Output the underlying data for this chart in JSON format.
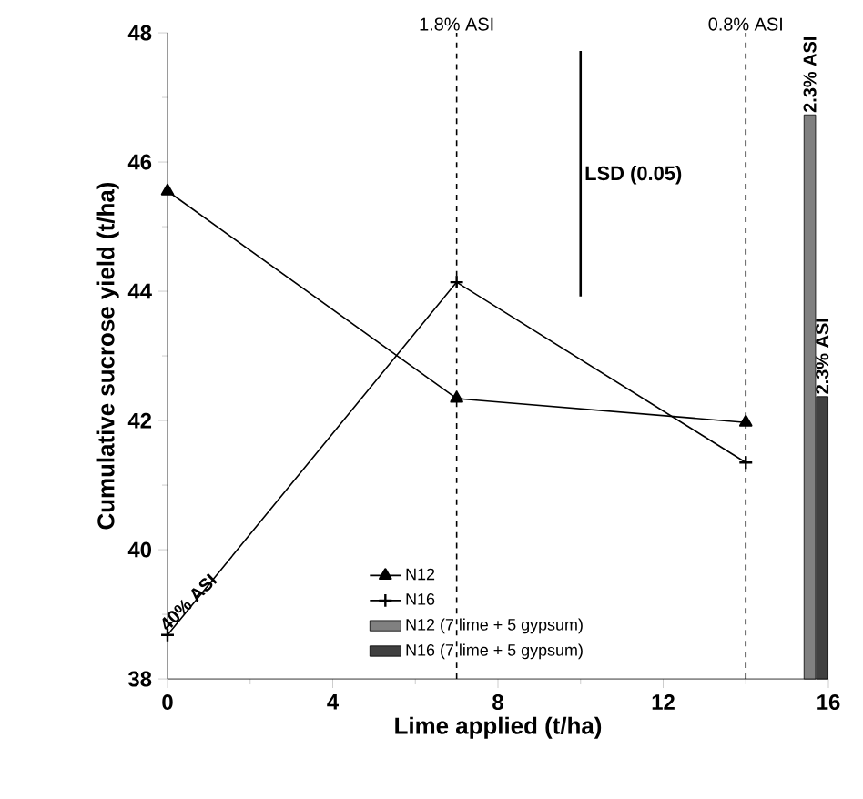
{
  "chart_data": {
    "type": "line",
    "xlabel": "Lime applied (t/ha)",
    "ylabel": "Cumulative sucrose yield (t/ha)",
    "xlim": [
      0,
      16
    ],
    "xticks": [
      0,
      4,
      8,
      12,
      16
    ],
    "ylim": [
      38,
      48
    ],
    "yticks": [
      38,
      40,
      42,
      44,
      46,
      48
    ],
    "grid": false,
    "legend": "bottom",
    "series": [
      {
        "name": "N12",
        "color": "#000000",
        "marker": "triangle",
        "x": [
          0,
          7,
          14
        ],
        "values": [
          45.55,
          42.34,
          41.97
        ]
      },
      {
        "name": "N16",
        "color": "#000000",
        "marker": "cross",
        "x": [
          0,
          7,
          14
        ],
        "values": [
          38.68,
          44.14,
          41.35
        ]
      },
      {
        "name": "N12 (7 lime + 5 gypsum)",
        "type": "bar",
        "color": "#808080",
        "x": [
          15.55
        ],
        "values": [
          46.73
        ]
      },
      {
        "name": "N16 (7 lime + 5 gypsum)",
        "type": "bar",
        "color": "#404040",
        "x": [
          15.85
        ],
        "values": [
          42.37
        ]
      },
      {
        "type": "line",
        "color": "#000000",
        "marker": "none",
        "x": [
          10,
          10
        ],
        "values": [
          43.92,
          47.72
        ]
      }
    ],
    "ref_lines": [
      {
        "axis": "x",
        "value": 7,
        "label": "1.8% ASI",
        "line_style": "dashed"
      },
      {
        "axis": "x",
        "value": 14,
        "label": "0.8% ASI",
        "line_style": "dashed"
      }
    ],
    "annotations": [
      {
        "text": "40% ASI",
        "x": 0,
        "y": 38.68
      },
      {
        "text": "2.3% ASI",
        "x": 15.55,
        "y": 46.73
      },
      {
        "text": "2.3% ASI",
        "x": 15.85,
        "y": 42.37
      },
      {
        "text": "LSD (0.05)",
        "x": 10,
        "y": 45.8
      }
    ]
  }
}
